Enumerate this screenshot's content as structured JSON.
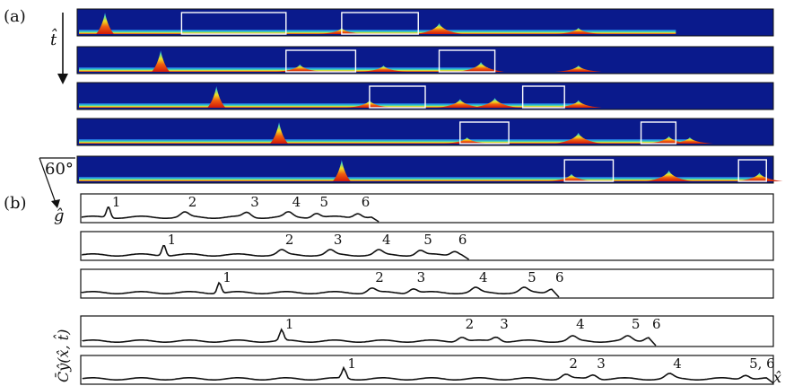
{
  "figure": {
    "label_a": "(a)",
    "label_b": "(b)",
    "t_axis_label": "t̂",
    "angle_label": "60°",
    "g_label": "ĝ",
    "cy_label": "C̄ŷ(x̂, t̂)",
    "x_axis_label": "x̂"
  },
  "panel_a": {
    "description_colors": {
      "background": "#0a1a8c",
      "band_low": "#1f56e0",
      "band_mid": "#2fd0c8",
      "band_high": "#f0e020",
      "peak": "#e02010",
      "box": "#ffffff"
    },
    "strips": [
      {
        "peaks": [
          [
            0.04,
            1.0
          ],
          [
            0.38,
            0.35
          ],
          [
            0.52,
            0.55
          ],
          [
            0.72,
            0.35
          ]
        ],
        "end": 0.86,
        "boxes": [
          [
            0.15,
            0.3
          ],
          [
            0.38,
            0.49
          ]
        ]
      },
      {
        "peaks": [
          [
            0.12,
            1.0
          ],
          [
            0.32,
            0.4
          ],
          [
            0.44,
            0.35
          ],
          [
            0.58,
            0.5
          ],
          [
            0.72,
            0.35
          ]
        ],
        "end": 0.59,
        "boxes": [
          [
            0.3,
            0.4
          ],
          [
            0.52,
            0.6
          ]
        ]
      },
      {
        "peaks": [
          [
            0.2,
            1.0
          ],
          [
            0.42,
            0.4
          ],
          [
            0.55,
            0.45
          ],
          [
            0.6,
            0.5
          ],
          [
            0.72,
            0.4
          ]
        ],
        "end": 0.72,
        "boxes": [
          [
            0.42,
            0.5
          ],
          [
            0.64,
            0.7
          ]
        ]
      },
      {
        "peaks": [
          [
            0.29,
            1.0
          ],
          [
            0.56,
            0.35
          ],
          [
            0.72,
            0.55
          ],
          [
            0.85,
            0.4
          ],
          [
            0.88,
            0.35
          ]
        ],
        "end": 0.88,
        "boxes": [
          [
            0.55,
            0.62
          ],
          [
            0.81,
            0.86
          ]
        ]
      },
      {
        "peaks": [
          [
            0.38,
            1.0
          ],
          [
            0.71,
            0.4
          ],
          [
            0.85,
            0.55
          ],
          [
            0.98,
            0.45
          ]
        ],
        "end": 0.99,
        "boxes": [
          [
            0.7,
            0.77
          ],
          [
            0.95,
            0.99
          ]
        ]
      }
    ]
  },
  "panel_b": {
    "rows": [
      {
        "labels": [
          "1",
          "2",
          "3",
          "4",
          "5",
          "6"
        ]
      },
      {
        "labels": [
          "1",
          "2",
          "3",
          "4",
          "5",
          "6"
        ]
      },
      {
        "labels": [
          "1",
          "2",
          "3",
          "4",
          "5",
          "6"
        ]
      },
      {
        "labels": [
          "1",
          "2",
          "3",
          "4",
          "5",
          "6"
        ]
      },
      {
        "labels": [
          "1",
          "2",
          "3",
          "4",
          "5, 6"
        ]
      }
    ]
  }
}
